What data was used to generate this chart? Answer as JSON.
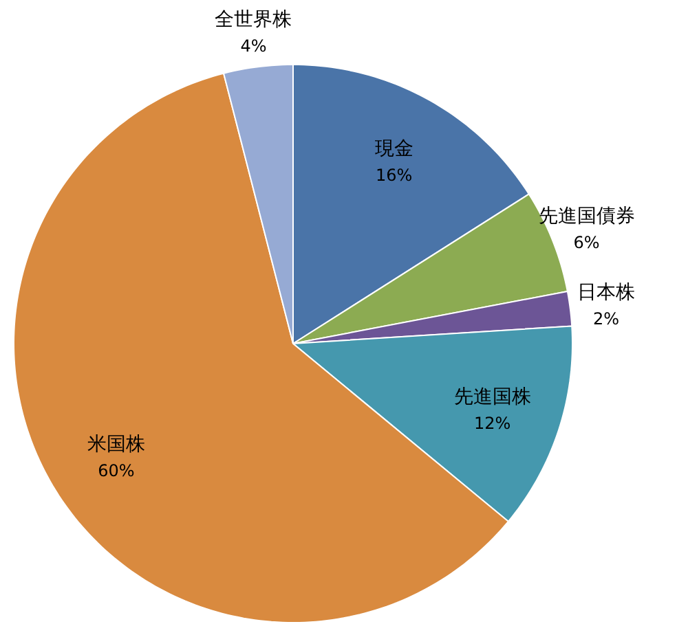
{
  "chart_data": {
    "type": "pie",
    "categories": [
      "現金",
      "先進国債券",
      "日本株",
      "先進国株",
      "米国株",
      "全世界株"
    ],
    "values": [
      16,
      6,
      2,
      12,
      60,
      4
    ],
    "value_labels": [
      "16%",
      "6%",
      "2%",
      "12%",
      "60%",
      "4%"
    ],
    "colors": [
      "#4a74a8",
      "#8cab52",
      "#6c5596",
      "#4598ae",
      "#d98a3f",
      "#96aad4"
    ]
  }
}
